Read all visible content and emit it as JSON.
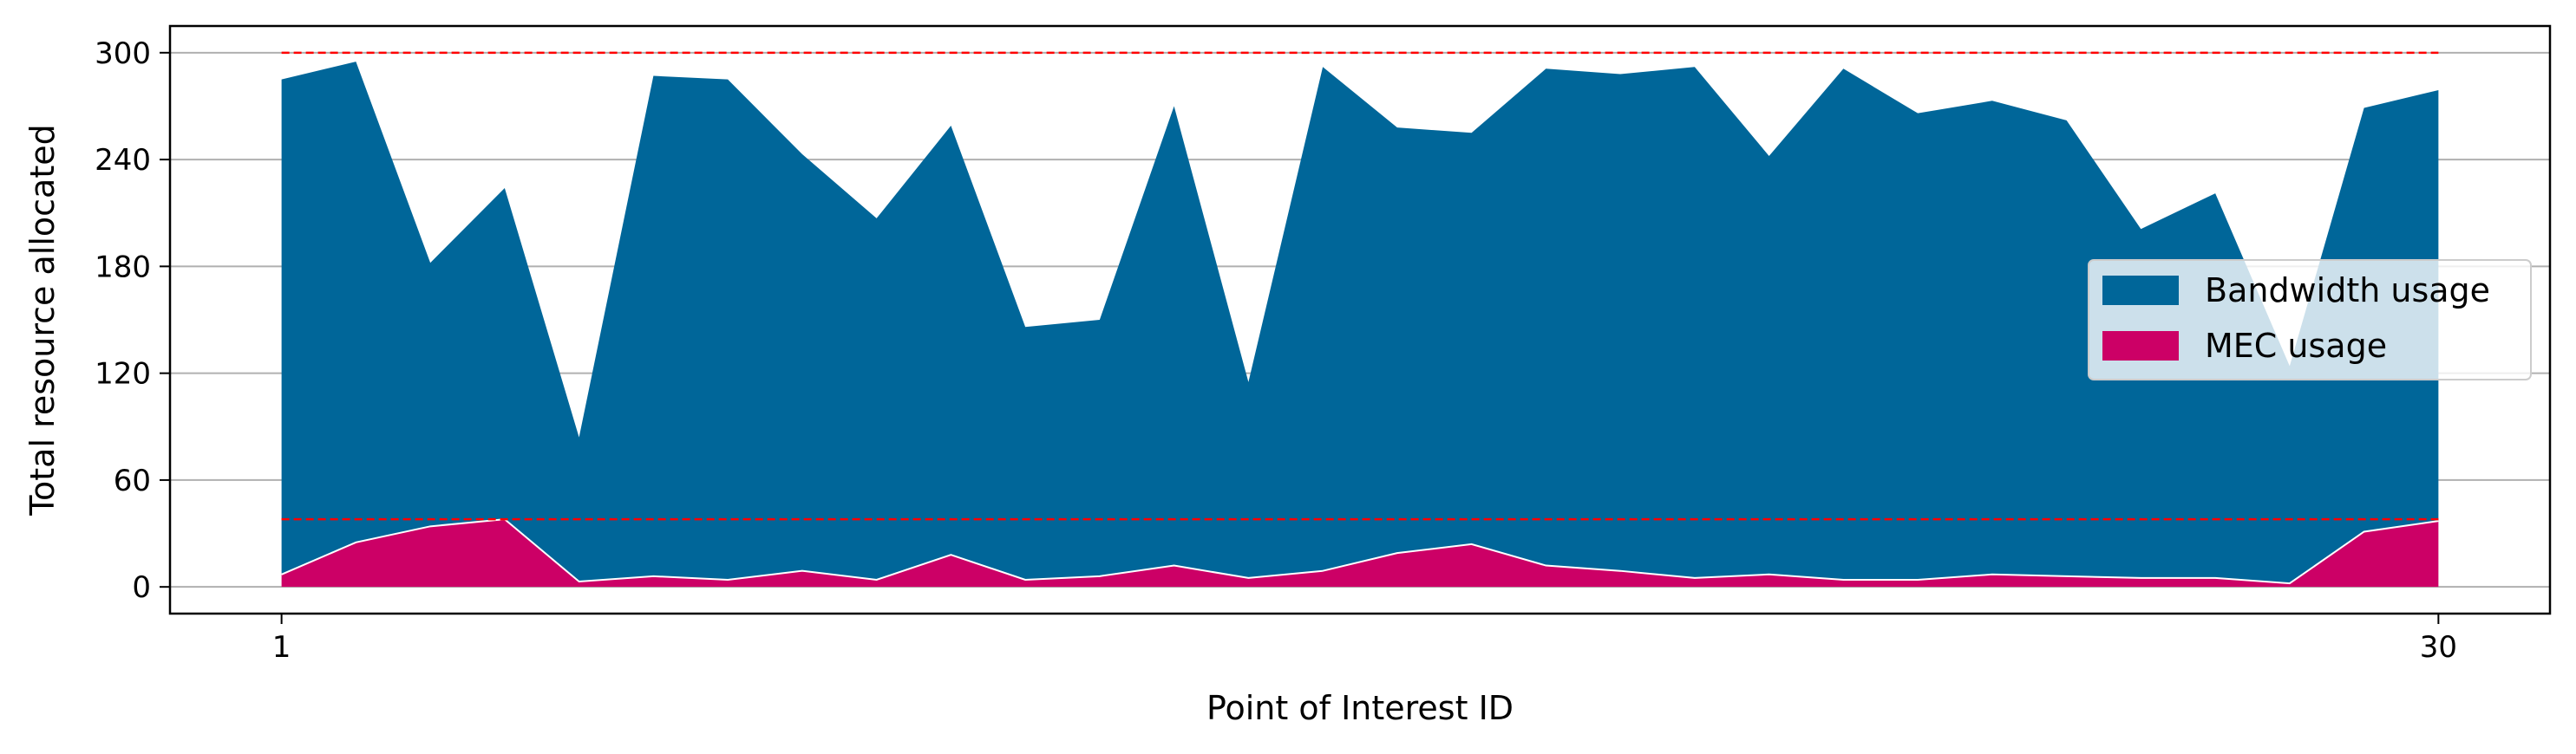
{
  "chart_data": {
    "type": "area",
    "stacked": true,
    "xlabel": "Point of Interest ID",
    "ylabel": "Total resource allocated",
    "x": [
      1,
      2,
      3,
      4,
      5,
      6,
      7,
      8,
      9,
      10,
      11,
      12,
      13,
      14,
      15,
      16,
      17,
      18,
      19,
      20,
      21,
      22,
      23,
      24,
      25,
      26,
      27,
      28,
      29,
      30
    ],
    "x_ticks": [
      "1",
      "30"
    ],
    "xlim": [
      -0.5,
      31.5
    ],
    "ylim": [
      -15,
      315
    ],
    "y_ticks": [
      "0",
      "60",
      "120",
      "180",
      "240",
      "300"
    ],
    "grid": "horizontal",
    "legend": "center-right",
    "series": [
      {
        "name": "MEC usage",
        "color": "#cc0066",
        "values": [
          7,
          25,
          34,
          38,
          3,
          6,
          4,
          9,
          4,
          18,
          4,
          6,
          12,
          5,
          9,
          19,
          24,
          12,
          9,
          5,
          7,
          4,
          4,
          7,
          6,
          5,
          5,
          2,
          31,
          37
        ]
      },
      {
        "name": "Bandwidth usage",
        "color": "#006699",
        "totals": [
          285,
          295,
          182,
          224,
          84,
          287,
          285,
          243,
          207,
          259,
          146,
          150,
          270,
          115,
          292,
          258,
          255,
          291,
          288,
          292,
          242,
          291,
          266,
          273,
          262,
          201,
          221,
          124,
          269,
          279
        ],
        "values": [
          278,
          270,
          148,
          186,
          81,
          281,
          281,
          234,
          203,
          241,
          142,
          144,
          258,
          110,
          283,
          239,
          231,
          279,
          279,
          287,
          235,
          287,
          262,
          266,
          256,
          196,
          216,
          122,
          238,
          242
        ]
      }
    ],
    "reference_lines": [
      {
        "y": 300,
        "color": "#ff0000",
        "style": "dashed"
      },
      {
        "y": 38,
        "color": "#ff0000",
        "style": "dashed"
      }
    ]
  }
}
